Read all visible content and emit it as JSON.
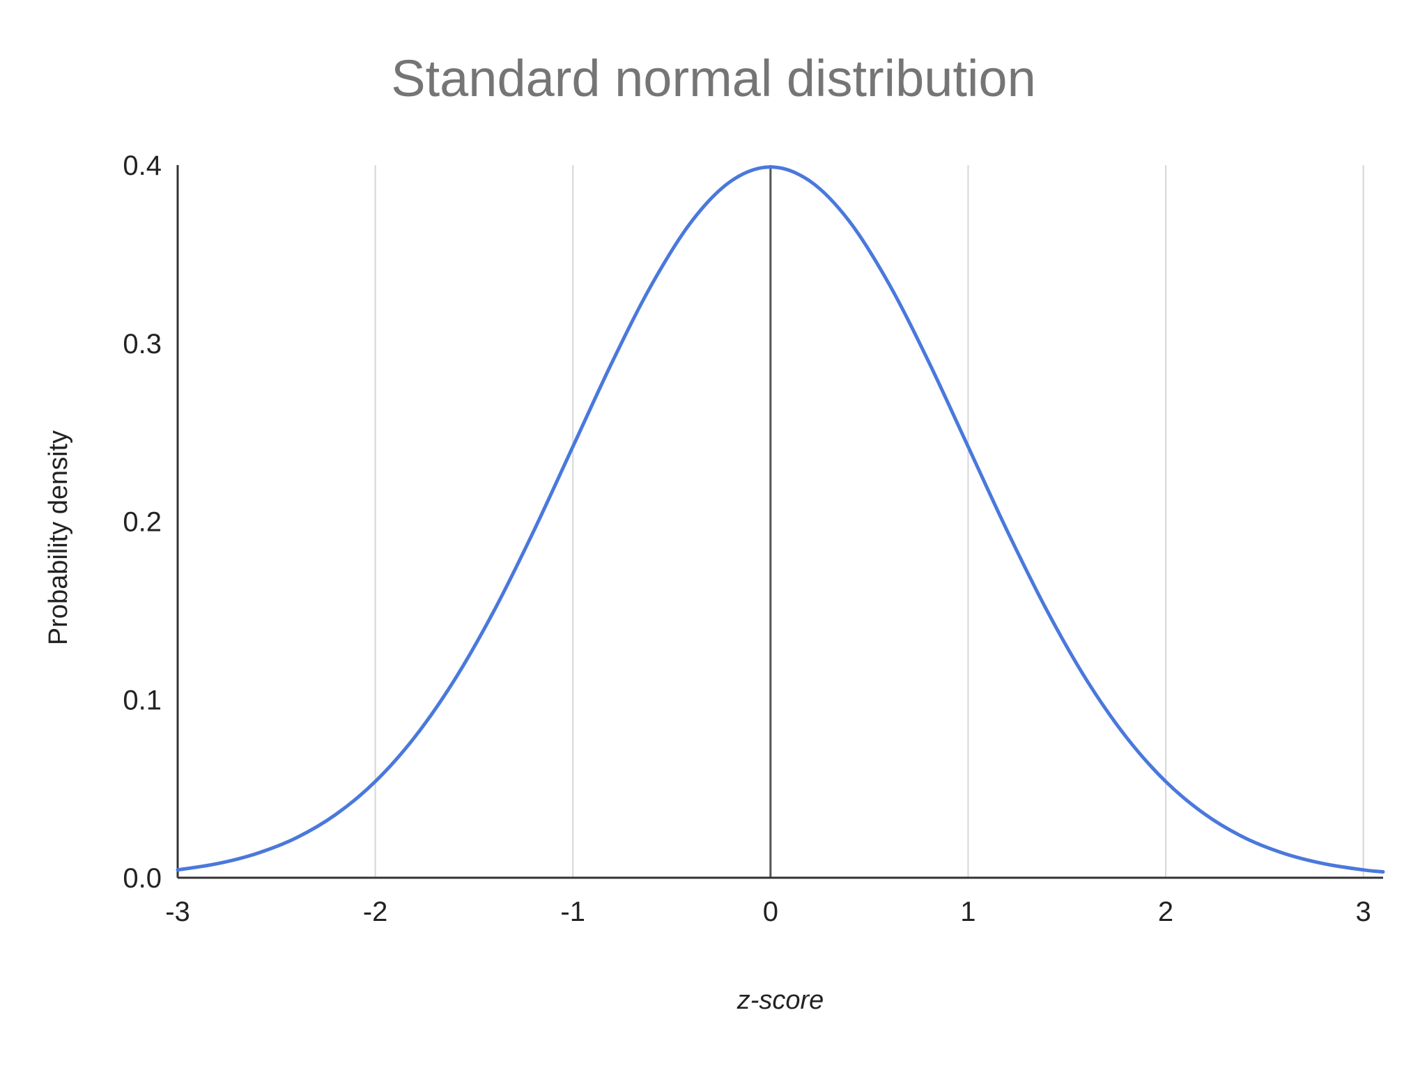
{
  "chart_data": {
    "type": "line",
    "title": "Standard normal distribution",
    "xlabel": "z-score",
    "ylabel": "Probability density",
    "xlim": [
      -3,
      3.1
    ],
    "ylim": [
      0,
      0.4
    ],
    "x_ticks": [
      -3,
      -2,
      -1,
      0,
      1,
      2,
      3
    ],
    "x_tick_labels": [
      "-3",
      "-2",
      "-1",
      "0",
      "1",
      "2",
      "3"
    ],
    "y_ticks": [
      0,
      0.1,
      0.2,
      0.3,
      0.4
    ],
    "y_tick_labels": [
      "0.0",
      "0.1",
      "0.2",
      "0.3",
      "0.4"
    ],
    "grid": "vertical",
    "legend": "none",
    "series": [
      {
        "color": "#4a78dc",
        "x": [
          -3.0,
          -2.8,
          -2.6,
          -2.4,
          -2.2,
          -2.0,
          -1.8,
          -1.6,
          -1.4,
          -1.2,
          -1.0,
          -0.8,
          -0.6,
          -0.4,
          -0.2,
          0.0,
          0.2,
          0.4,
          0.6,
          0.8,
          1.0,
          1.2,
          1.4,
          1.6,
          1.8,
          2.0,
          2.2,
          2.4,
          2.6,
          2.8,
          3.0,
          3.1
        ],
        "y": [
          0.0044,
          0.0079,
          0.0136,
          0.0224,
          0.0355,
          0.054,
          0.079,
          0.1109,
          0.1497,
          0.1942,
          0.242,
          0.2897,
          0.3332,
          0.3683,
          0.391,
          0.3989,
          0.391,
          0.3683,
          0.3332,
          0.2897,
          0.242,
          0.1942,
          0.1497,
          0.1109,
          0.079,
          0.054,
          0.0355,
          0.0224,
          0.0136,
          0.0079,
          0.0044,
          0.0033
        ]
      }
    ]
  }
}
